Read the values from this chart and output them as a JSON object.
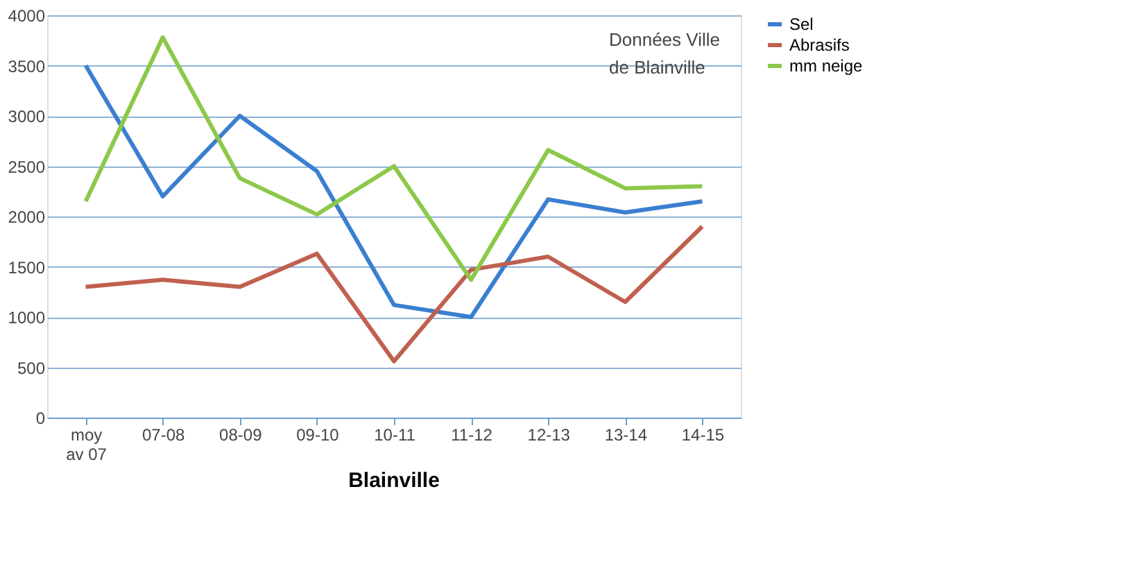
{
  "chart_data": {
    "type": "line",
    "title": "Blainville",
    "categories": [
      "moy av 07",
      "07-08",
      "08-09",
      "09-10",
      "10-11",
      "11-12",
      "12-13",
      "13-14",
      "14-15"
    ],
    "series": [
      {
        "name": "Sel",
        "color": "#3a7fd0",
        "values": [
          3500,
          2200,
          3000,
          2450,
          1120,
          1000,
          2170,
          2040,
          2150
        ]
      },
      {
        "name": "Abrasifs",
        "color": "#c0604f",
        "values": [
          1300,
          1370,
          1300,
          1630,
          560,
          1470,
          1600,
          1150,
          1900
        ]
      },
      {
        "name": "mm neige",
        "color": "#8cc84a",
        "values": [
          2150,
          3780,
          2380,
          2020,
          2500,
          1370,
          2660,
          2280,
          2300
        ]
      }
    ],
    "ylim": [
      0,
      4000
    ],
    "yticks": [
      0,
      500,
      1000,
      1500,
      2000,
      2500,
      3000,
      3500,
      4000
    ],
    "grid": "y",
    "legend": "right",
    "marker": "none",
    "line_style": "solid",
    "annotations": [
      "Données Ville de Blainville"
    ]
  }
}
